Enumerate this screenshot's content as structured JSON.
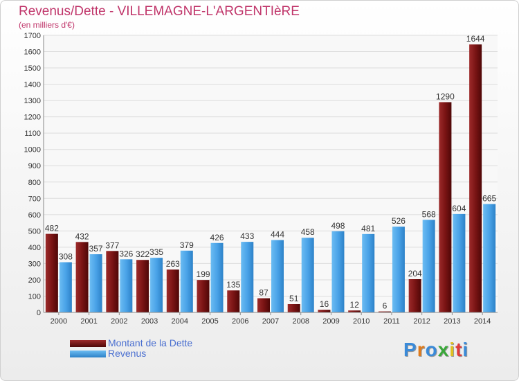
{
  "chart_data": {
    "type": "bar",
    "title": "Revenus/Dette - VILLEMAGNE-L'ARGENTIèRE",
    "subtitle": "(en milliers d'€)",
    "xlabel": "",
    "ylabel": "",
    "ylim": [
      0,
      1700
    ],
    "yticks": [
      0,
      100,
      200,
      300,
      400,
      500,
      600,
      700,
      800,
      900,
      1000,
      1100,
      1200,
      1300,
      1400,
      1500,
      1600,
      1700
    ],
    "grid": true,
    "legend_position": "bottom-left",
    "categories": [
      "2000",
      "2001",
      "2002",
      "2003",
      "2004",
      "2005",
      "2006",
      "2007",
      "2008",
      "2009",
      "2010",
      "2011",
      "2012",
      "2013",
      "2014"
    ],
    "series": [
      {
        "name": "Montant de la Dette",
        "color": "#7a1414",
        "values": [
          482,
          432,
          377,
          322,
          263,
          199,
          135,
          87,
          51,
          16,
          12,
          6,
          204,
          1290,
          1644
        ]
      },
      {
        "name": "Revenus",
        "color": "#4aa3e8",
        "values": [
          308,
          357,
          326,
          335,
          379,
          426,
          433,
          444,
          458,
          498,
          481,
          526,
          568,
          604,
          665
        ]
      }
    ]
  },
  "logo": {
    "text": "Proxiti",
    "letter_colors": [
      "#3a8ad8",
      "#e07a1a",
      "#3a8ad8",
      "#3aa83a",
      "#e0c020",
      "#e03a3a",
      "#3a8ad8"
    ]
  }
}
